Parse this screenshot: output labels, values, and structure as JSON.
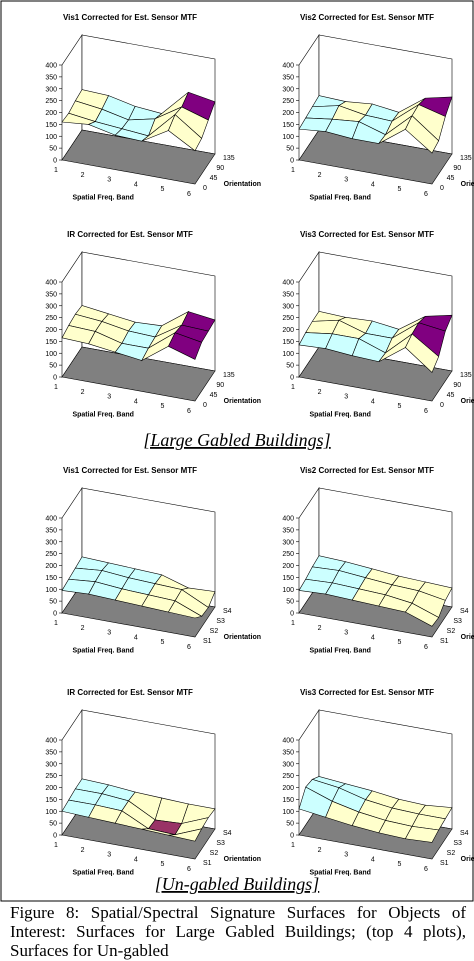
{
  "band_colors": [
    "#993366",
    "#ffffcc",
    "#ccffff",
    "#ffffcc",
    "#800080",
    "#800080",
    "#800080",
    "#800080"
  ],
  "floor_color": "#808080",
  "sections": [
    "[Large Gabled Buildings]",
    "[Un-gabled Buildings]"
  ],
  "caption": "Figure 8: Spatial/Spectral Signature Surfaces for Objects of Interest: Surfaces for Large Gabled Buildings; (top 4 plots), Surfaces for Un-gabled",
  "panels": [
    {
      "title": "Vis1 Corrected for Est. Sensor MTF",
      "xlabel": "Spatial Freq. Band",
      "ylabel": "Orientation",
      "zticks": [
        0,
        50,
        100,
        150,
        200,
        250,
        300,
        350,
        400
      ],
      "xticks": [
        1,
        2,
        3,
        4,
        5,
        6
      ],
      "yticks": [
        0,
        45,
        90,
        135
      ],
      "z": [
        [
          160,
          155,
          165,
          170
        ],
        [
          170,
          140,
          150,
          165
        ],
        [
          145,
          130,
          125,
          140
        ],
        [
          140,
          120,
          150,
          130
        ],
        [
          205,
          230,
          220,
          240
        ],
        [
          140,
          150,
          185,
          220
        ]
      ]
    },
    {
      "title": "Vis2 Corrected for Est. Sensor MTF",
      "xlabel": "Spatial Freq. Band",
      "ylabel": "Orientation",
      "zticks": [
        0,
        50,
        100,
        150,
        200,
        250,
        300,
        350,
        400
      ],
      "xticks": [
        1,
        2,
        3,
        4,
        5,
        6
      ],
      "yticks": [
        0,
        45,
        90,
        135
      ],
      "z": [
        [
          130,
          135,
          140,
          145
        ],
        [
          140,
          150,
          165,
          140
        ],
        [
          130,
          160,
          145,
          150
        ],
        [
          130,
          125,
          140,
          135
        ],
        [
          210,
          225,
          230,
          215
        ],
        [
          130,
          140,
          200,
          240
        ]
      ]
    },
    {
      "title": "IR Corrected for Est. Sensor MTF",
      "xlabel": "Spatial Freq. Band",
      "ylabel": "Orientation",
      "zticks": [
        0,
        50,
        100,
        150,
        200,
        250,
        300,
        350,
        400
      ],
      "xticks": [
        1,
        2,
        3,
        4,
        5,
        6
      ],
      "yticks": [
        0,
        45,
        90,
        135
      ],
      "z": [
        [
          165,
          175,
          180,
          175
        ],
        [
          160,
          170,
          170,
          160
        ],
        [
          145,
          140,
          150,
          145
        ],
        [
          130,
          140,
          145,
          150
        ],
        [
          210,
          225,
          215,
          230
        ],
        [
          175,
          205,
          210,
          215
        ]
      ]
    },
    {
      "title": "Vis3 Corrected for Est. Sensor MTF",
      "xlabel": "Spatial Freq. Band",
      "ylabel": "Orientation",
      "zticks": [
        0,
        50,
        100,
        150,
        200,
        250,
        300,
        350,
        400
      ],
      "xticks": [
        1,
        2,
        3,
        4,
        5,
        6
      ],
      "yticks": [
        0,
        45,
        90,
        135
      ],
      "z": [
        [
          135,
          145,
          150,
          150
        ],
        [
          140,
          160,
          175,
          145
        ],
        [
          130,
          160,
          140,
          150
        ],
        [
          125,
          120,
          140,
          135
        ],
        [
          205,
          220,
          225,
          210
        ],
        [
          120,
          145,
          210,
          235
        ]
      ]
    },
    {
      "title": "Vis1 Corrected for Est. Sensor MTF",
      "xlabel": "Spatial Freq. Band",
      "ylabel": "Orientation",
      "zticks": [
        0,
        50,
        100,
        150,
        200,
        250,
        300,
        350,
        400
      ],
      "xticks": [
        1,
        2,
        3,
        4,
        5,
        6
      ],
      "yticks": [
        "S1",
        "S2",
        "S3",
        "S4"
      ],
      "z": [
        [
          95,
          100,
          105,
          110
        ],
        [
          100,
          110,
          115,
          105
        ],
        [
          95,
          100,
          105,
          100
        ],
        [
          90,
          95,
          100,
          95
        ],
        [
          85,
          90,
          95,
          60
        ],
        [
          80,
          45,
          40,
          65
        ]
      ]
    },
    {
      "title": "Vis2 Corrected for Est. Sensor MTF",
      "xlabel": "Spatial Freq. Band",
      "ylabel": "Orientation",
      "zticks": [
        0,
        50,
        100,
        150,
        200,
        250,
        300,
        350,
        400
      ],
      "xticks": [
        1,
        2,
        3,
        4,
        5,
        6
      ],
      "yticks": [
        "S1",
        "S2",
        "S3",
        "S4"
      ],
      "z": [
        [
          95,
          100,
          110,
          115
        ],
        [
          100,
          105,
          115,
          110
        ],
        [
          95,
          100,
          105,
          100
        ],
        [
          90,
          95,
          95,
          90
        ],
        [
          85,
          80,
          90,
          85
        ],
        [
          45,
          40,
          70,
          80
        ]
      ]
    },
    {
      "title": "IR Corrected for Est. Sensor MTF",
      "xlabel": "Spatial Freq. Band",
      "ylabel": "Orientation",
      "zticks": [
        0,
        50,
        100,
        150,
        200,
        250,
        300,
        350,
        400
      ],
      "xticks": [
        1,
        2,
        3,
        4,
        5,
        6
      ],
      "yticks": [
        "S1",
        "S2",
        "S3",
        "S4"
      ],
      "z": [
        [
          100,
          105,
          110,
          110
        ],
        [
          95,
          105,
          110,
          105
        ],
        [
          90,
          100,
          100,
          95
        ],
        [
          85,
          45,
          40,
          90
        ],
        [
          80,
          40,
          45,
          85
        ],
        [
          75,
          85,
          90,
          85
        ]
      ]
    },
    {
      "title": "Vis3 Corrected for Est. Sensor MTF",
      "xlabel": "Spatial Freq. Band",
      "ylabel": "Orientation",
      "zticks": [
        0,
        50,
        100,
        150,
        200,
        250,
        300,
        350,
        400
      ],
      "xticks": [
        1,
        2,
        3,
        4,
        5,
        6
      ],
      "yticks": [
        "S1",
        "S2",
        "S3",
        "S4"
      ],
      "z": [
        [
          110,
          160,
          150,
          120
        ],
        [
          95,
          120,
          135,
          110
        ],
        [
          80,
          95,
          105,
          100
        ],
        [
          70,
          80,
          90,
          85
        ],
        [
          65,
          75,
          85,
          80
        ],
        [
          70,
          80,
          85,
          90
        ]
      ]
    }
  ]
}
